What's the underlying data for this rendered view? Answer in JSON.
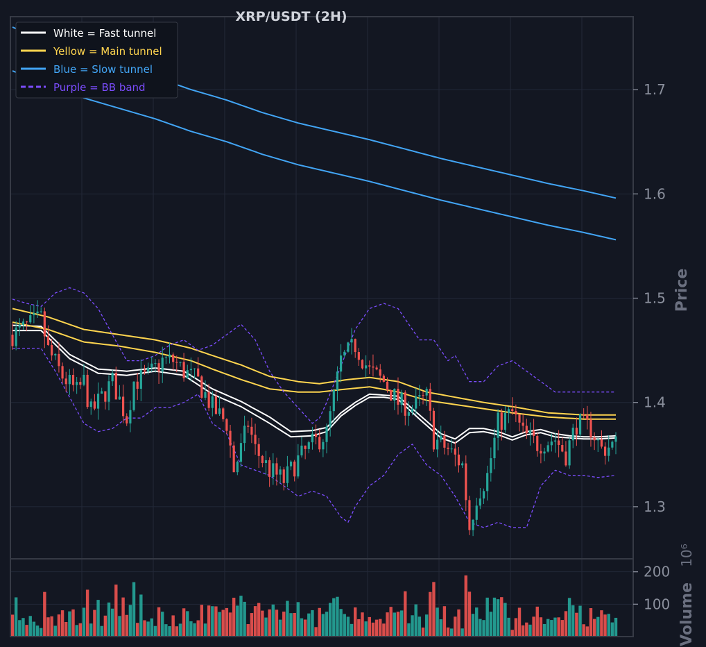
{
  "colors": {
    "background": "#131722",
    "grid": "#232838",
    "frame": "#363a45",
    "tick_text": "#8a8f9c",
    "up": "#26a69a",
    "down": "#ef5350",
    "fast_tunnel": "#ffffff",
    "main_tunnel": "#ffd54f",
    "slow_tunnel": "#42a5f5",
    "bb_band": "#7c4dff",
    "title": "#d1d4dc"
  },
  "chart_data": {
    "type": "candlestick",
    "title": "XRP/USDT (2H)",
    "price_axis": {
      "label": "Price",
      "ylim": [
        1.25,
        1.77
      ],
      "ticks": [
        1.3,
        1.4,
        1.5,
        1.6,
        1.7
      ],
      "tick_labels": [
        "1.3",
        "1.4",
        "1.5",
        "1.6",
        "1.7"
      ],
      "side": "right"
    },
    "volume_axis": {
      "label": "Volume",
      "scale_label": "10⁶",
      "ylim": [
        0,
        240
      ],
      "ticks": [
        100,
        200
      ],
      "tick_labels": [
        "100",
        "200"
      ]
    },
    "grid": true,
    "legend": {
      "position": "top-left",
      "entries": [
        {
          "label": "White = Fast tunnel",
          "color_key": "fast_tunnel",
          "style": "solid"
        },
        {
          "label": "Yellow = Main tunnel",
          "color_key": "main_tunnel",
          "style": "solid"
        },
        {
          "label": "Blue = Slow tunnel",
          "color_key": "slow_tunnel",
          "style": "solid"
        },
        {
          "label": "Purple = BB band",
          "color_key": "bb_band",
          "style": "dashed"
        }
      ]
    },
    "candle_count": 170,
    "close_path": [
      [
        0,
        1.465
      ],
      [
        8,
        1.48
      ],
      [
        10,
        1.45
      ],
      [
        14,
        1.425
      ],
      [
        18,
        1.41
      ],
      [
        20,
        1.42
      ],
      [
        22,
        1.39
      ],
      [
        25,
        1.405
      ],
      [
        28,
        1.42
      ],
      [
        32,
        1.385
      ],
      [
        34,
        1.42
      ],
      [
        38,
        1.425
      ],
      [
        42,
        1.44
      ],
      [
        45,
        1.44
      ],
      [
        48,
        1.43
      ],
      [
        52,
        1.42
      ],
      [
        56,
        1.395
      ],
      [
        60,
        1.38
      ],
      [
        62,
        1.335
      ],
      [
        64,
        1.355
      ],
      [
        66,
        1.38
      ],
      [
        68,
        1.355
      ],
      [
        72,
        1.335
      ],
      [
        76,
        1.325
      ],
      [
        80,
        1.345
      ],
      [
        84,
        1.36
      ],
      [
        88,
        1.37
      ],
      [
        92,
        1.44
      ],
      [
        96,
        1.455
      ],
      [
        100,
        1.43
      ],
      [
        104,
        1.42
      ],
      [
        108,
        1.4
      ],
      [
        112,
        1.395
      ],
      [
        116,
        1.405
      ],
      [
        118,
        1.365
      ],
      [
        122,
        1.355
      ],
      [
        126,
        1.34
      ],
      [
        128,
        1.28
      ],
      [
        130,
        1.31
      ],
      [
        133,
        1.33
      ],
      [
        136,
        1.38
      ],
      [
        140,
        1.39
      ],
      [
        143,
        1.37
      ],
      [
        147,
        1.36
      ],
      [
        152,
        1.365
      ],
      [
        155,
        1.35
      ],
      [
        158,
        1.38
      ],
      [
        162,
        1.375
      ],
      [
        165,
        1.355
      ],
      [
        169,
        1.36
      ]
    ],
    "series": [
      {
        "name": "Fast tunnel",
        "color_key": "fast_tunnel",
        "upper": [
          [
            0,
            1.474
          ],
          [
            8,
            1.473
          ],
          [
            16,
            1.446
          ],
          [
            24,
            1.432
          ],
          [
            32,
            1.43
          ],
          [
            40,
            1.433
          ],
          [
            48,
            1.43
          ],
          [
            56,
            1.413
          ],
          [
            64,
            1.401
          ],
          [
            72,
            1.386
          ],
          [
            78,
            1.372
          ],
          [
            84,
            1.373
          ],
          [
            88,
            1.376
          ],
          [
            92,
            1.39
          ],
          [
            96,
            1.4
          ],
          [
            100,
            1.408
          ],
          [
            104,
            1.407
          ],
          [
            108,
            1.406
          ],
          [
            114,
            1.388
          ],
          [
            120,
            1.37
          ],
          [
            124,
            1.365
          ],
          [
            128,
            1.375
          ],
          [
            132,
            1.375
          ],
          [
            136,
            1.372
          ],
          [
            140,
            1.367
          ],
          [
            144,
            1.372
          ],
          [
            148,
            1.374
          ],
          [
            152,
            1.37
          ],
          [
            156,
            1.368
          ],
          [
            160,
            1.367
          ],
          [
            164,
            1.367
          ],
          [
            169,
            1.368
          ]
        ],
        "lower": [
          [
            0,
            1.469
          ],
          [
            8,
            1.469
          ],
          [
            16,
            1.442
          ],
          [
            24,
            1.428
          ],
          [
            32,
            1.426
          ],
          [
            40,
            1.43
          ],
          [
            48,
            1.426
          ],
          [
            56,
            1.408
          ],
          [
            64,
            1.396
          ],
          [
            72,
            1.38
          ],
          [
            78,
            1.367
          ],
          [
            84,
            1.368
          ],
          [
            88,
            1.372
          ],
          [
            92,
            1.387
          ],
          [
            96,
            1.397
          ],
          [
            100,
            1.405
          ],
          [
            104,
            1.405
          ],
          [
            108,
            1.403
          ],
          [
            114,
            1.384
          ],
          [
            120,
            1.366
          ],
          [
            124,
            1.361
          ],
          [
            128,
            1.371
          ],
          [
            132,
            1.372
          ],
          [
            136,
            1.369
          ],
          [
            140,
            1.364
          ],
          [
            144,
            1.369
          ],
          [
            148,
            1.371
          ],
          [
            152,
            1.367
          ],
          [
            156,
            1.366
          ],
          [
            160,
            1.365
          ],
          [
            164,
            1.365
          ],
          [
            169,
            1.366
          ]
        ]
      },
      {
        "name": "Main tunnel",
        "color_key": "main_tunnel",
        "upper": [
          [
            0,
            1.49
          ],
          [
            10,
            1.482
          ],
          [
            20,
            1.47
          ],
          [
            30,
            1.465
          ],
          [
            40,
            1.46
          ],
          [
            50,
            1.452
          ],
          [
            56,
            1.445
          ],
          [
            64,
            1.436
          ],
          [
            72,
            1.425
          ],
          [
            80,
            1.42
          ],
          [
            86,
            1.418
          ],
          [
            94,
            1.422
          ],
          [
            100,
            1.424
          ],
          [
            108,
            1.42
          ],
          [
            116,
            1.41
          ],
          [
            124,
            1.405
          ],
          [
            132,
            1.4
          ],
          [
            140,
            1.396
          ],
          [
            150,
            1.39
          ],
          [
            160,
            1.388
          ],
          [
            169,
            1.388
          ]
        ],
        "lower": [
          [
            0,
            1.477
          ],
          [
            10,
            1.47
          ],
          [
            20,
            1.458
          ],
          [
            30,
            1.454
          ],
          [
            40,
            1.448
          ],
          [
            50,
            1.44
          ],
          [
            56,
            1.432
          ],
          [
            64,
            1.422
          ],
          [
            72,
            1.413
          ],
          [
            80,
            1.41
          ],
          [
            86,
            1.41
          ],
          [
            94,
            1.413
          ],
          [
            100,
            1.415
          ],
          [
            108,
            1.41
          ],
          [
            116,
            1.402
          ],
          [
            124,
            1.398
          ],
          [
            132,
            1.394
          ],
          [
            140,
            1.39
          ],
          [
            150,
            1.386
          ],
          [
            160,
            1.384
          ],
          [
            169,
            1.384
          ]
        ]
      },
      {
        "name": "Slow tunnel",
        "color_key": "slow_tunnel",
        "upper": [
          [
            0,
            1.76
          ],
          [
            10,
            1.745
          ],
          [
            20,
            1.732
          ],
          [
            30,
            1.722
          ],
          [
            40,
            1.712
          ],
          [
            50,
            1.7
          ],
          [
            60,
            1.69
          ],
          [
            70,
            1.678
          ],
          [
            80,
            1.668
          ],
          [
            90,
            1.66
          ],
          [
            100,
            1.652
          ],
          [
            110,
            1.643
          ],
          [
            120,
            1.634
          ],
          [
            130,
            1.626
          ],
          [
            140,
            1.618
          ],
          [
            150,
            1.61
          ],
          [
            160,
            1.603
          ],
          [
            169,
            1.596
          ]
        ],
        "lower": [
          [
            0,
            1.718
          ],
          [
            10,
            1.705
          ],
          [
            20,
            1.692
          ],
          [
            30,
            1.682
          ],
          [
            40,
            1.672
          ],
          [
            50,
            1.66
          ],
          [
            60,
            1.65
          ],
          [
            70,
            1.638
          ],
          [
            80,
            1.628
          ],
          [
            90,
            1.62
          ],
          [
            100,
            1.612
          ],
          [
            110,
            1.603
          ],
          [
            120,
            1.594
          ],
          [
            130,
            1.586
          ],
          [
            140,
            1.578
          ],
          [
            150,
            1.57
          ],
          [
            160,
            1.563
          ],
          [
            169,
            1.556
          ]
        ]
      },
      {
        "name": "BB band",
        "color_key": "bb_band",
        "upper": [
          [
            0,
            1.499
          ],
          [
            4,
            1.495
          ],
          [
            8,
            1.492
          ],
          [
            12,
            1.505
          ],
          [
            16,
            1.51
          ],
          [
            20,
            1.505
          ],
          [
            24,
            1.49
          ],
          [
            28,
            1.465
          ],
          [
            32,
            1.44
          ],
          [
            36,
            1.44
          ],
          [
            40,
            1.445
          ],
          [
            44,
            1.455
          ],
          [
            48,
            1.46
          ],
          [
            52,
            1.45
          ],
          [
            56,
            1.455
          ],
          [
            60,
            1.465
          ],
          [
            64,
            1.475
          ],
          [
            68,
            1.46
          ],
          [
            72,
            1.43
          ],
          [
            76,
            1.41
          ],
          [
            80,
            1.395
          ],
          [
            84,
            1.38
          ],
          [
            86,
            1.385
          ],
          [
            88,
            1.4
          ],
          [
            92,
            1.435
          ],
          [
            96,
            1.47
          ],
          [
            100,
            1.49
          ],
          [
            104,
            1.495
          ],
          [
            108,
            1.49
          ],
          [
            112,
            1.47
          ],
          [
            114,
            1.46
          ],
          [
            118,
            1.46
          ],
          [
            122,
            1.44
          ],
          [
            124,
            1.445
          ],
          [
            128,
            1.42
          ],
          [
            132,
            1.42
          ],
          [
            136,
            1.435
          ],
          [
            140,
            1.44
          ],
          [
            144,
            1.43
          ],
          [
            148,
            1.42
          ],
          [
            152,
            1.41
          ],
          [
            156,
            1.41
          ],
          [
            160,
            1.41
          ],
          [
            169,
            1.41
          ]
        ],
        "lower": [
          [
            0,
            1.452
          ],
          [
            8,
            1.452
          ],
          [
            12,
            1.43
          ],
          [
            16,
            1.405
          ],
          [
            20,
            1.38
          ],
          [
            24,
            1.372
          ],
          [
            28,
            1.375
          ],
          [
            32,
            1.385
          ],
          [
            36,
            1.385
          ],
          [
            40,
            1.395
          ],
          [
            44,
            1.395
          ],
          [
            48,
            1.4
          ],
          [
            52,
            1.408
          ],
          [
            56,
            1.38
          ],
          [
            60,
            1.37
          ],
          [
            64,
            1.34
          ],
          [
            68,
            1.335
          ],
          [
            72,
            1.33
          ],
          [
            76,
            1.32
          ],
          [
            80,
            1.31
          ],
          [
            84,
            1.315
          ],
          [
            88,
            1.31
          ],
          [
            90,
            1.3
          ],
          [
            92,
            1.29
          ],
          [
            94,
            1.285
          ],
          [
            96,
            1.3
          ],
          [
            100,
            1.32
          ],
          [
            104,
            1.33
          ],
          [
            108,
            1.35
          ],
          [
            112,
            1.36
          ],
          [
            116,
            1.34
          ],
          [
            120,
            1.33
          ],
          [
            124,
            1.31
          ],
          [
            128,
            1.285
          ],
          [
            132,
            1.28
          ],
          [
            136,
            1.285
          ],
          [
            140,
            1.28
          ],
          [
            144,
            1.28
          ],
          [
            148,
            1.32
          ],
          [
            152,
            1.335
          ],
          [
            156,
            1.33
          ],
          [
            160,
            1.33
          ],
          [
            164,
            1.328
          ],
          [
            169,
            1.33
          ]
        ]
      }
    ]
  }
}
